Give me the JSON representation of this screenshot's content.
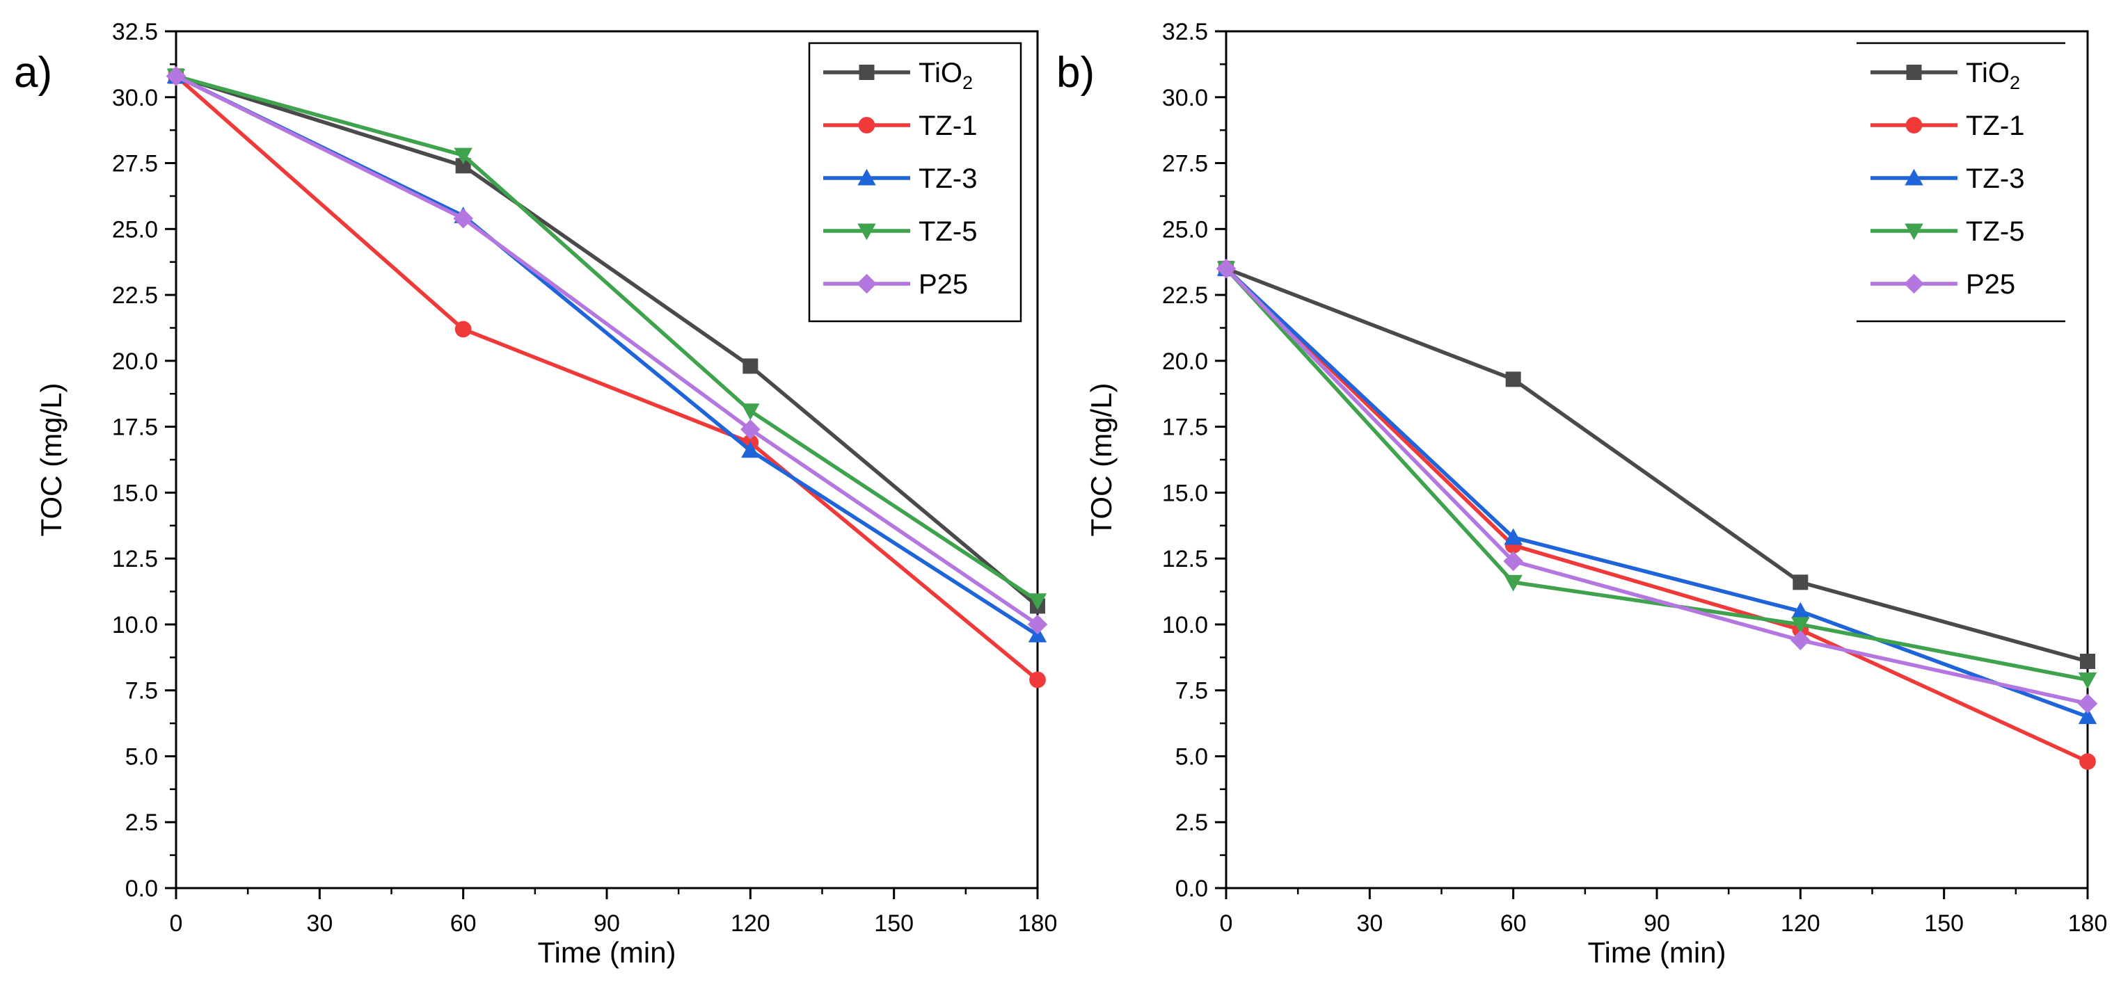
{
  "chart_data": [
    {
      "type": "line",
      "panel_label": "a)",
      "xlabel": "Time (min)",
      "ylabel": "TOC (mg/L)",
      "xlim": [
        0,
        180
      ],
      "ylim": [
        0,
        32.5
      ],
      "x_ticks": [
        0,
        30,
        60,
        90,
        120,
        150,
        180
      ],
      "y_ticks": [
        "0.0",
        "2.5",
        "5.0",
        "7.5",
        "10.0",
        "12.5",
        "15.0",
        "17.5",
        "20.0",
        "22.5",
        "25.0",
        "27.5",
        "30.0",
        "32.5"
      ],
      "grid": false,
      "legend_position": "top-right",
      "x": [
        0,
        60,
        120,
        180
      ],
      "series": [
        {
          "name": "TiO",
          "subscript": "2",
          "color": "#4a4a4a",
          "marker": "square",
          "values": [
            30.8,
            27.4,
            19.8,
            10.7
          ]
        },
        {
          "name": "TZ-1",
          "subscript": "",
          "color": "#f03a3a",
          "marker": "circle",
          "values": [
            30.8,
            21.2,
            16.9,
            7.9
          ]
        },
        {
          "name": "TZ-3",
          "subscript": "",
          "color": "#1f64d8",
          "marker": "triangle-up",
          "values": [
            30.8,
            25.5,
            16.6,
            9.6
          ]
        },
        {
          "name": "TZ-5",
          "subscript": "",
          "color": "#3fa34d",
          "marker": "triangle-down",
          "values": [
            30.8,
            27.8,
            18.1,
            10.9
          ]
        },
        {
          "name": "P25",
          "subscript": "",
          "color": "#b477e0",
          "marker": "diamond",
          "values": [
            30.8,
            25.4,
            17.4,
            10.0
          ]
        }
      ]
    },
    {
      "type": "line",
      "panel_label": "b)",
      "xlabel": "Time (min)",
      "ylabel": "TOC (mg/L)",
      "xlim": [
        0,
        180
      ],
      "ylim": [
        0,
        32.5
      ],
      "x_ticks": [
        0,
        30,
        60,
        90,
        120,
        150,
        180
      ],
      "y_ticks": [
        "0.0",
        "2.5",
        "5.0",
        "7.5",
        "10.0",
        "12.5",
        "15.0",
        "17.5",
        "20.0",
        "22.5",
        "25.0",
        "27.5",
        "30.0",
        "32.5"
      ],
      "grid": false,
      "legend_position": "top-right",
      "x": [
        0,
        60,
        120,
        180
      ],
      "series": [
        {
          "name": "TiO",
          "subscript": "2",
          "color": "#4a4a4a",
          "marker": "square",
          "values": [
            23.5,
            19.3,
            11.6,
            8.6
          ]
        },
        {
          "name": "TZ-1",
          "subscript": "",
          "color": "#f03a3a",
          "marker": "circle",
          "values": [
            23.5,
            13.0,
            9.8,
            4.8
          ]
        },
        {
          "name": "TZ-3",
          "subscript": "",
          "color": "#1f64d8",
          "marker": "triangle-up",
          "values": [
            23.5,
            13.3,
            10.5,
            6.5
          ]
        },
        {
          "name": "TZ-5",
          "subscript": "",
          "color": "#3fa34d",
          "marker": "triangle-down",
          "values": [
            23.5,
            11.6,
            10.0,
            7.9
          ]
        },
        {
          "name": "P25",
          "subscript": "",
          "color": "#b477e0",
          "marker": "diamond",
          "values": [
            23.5,
            12.4,
            9.4,
            7.0
          ]
        }
      ]
    }
  ]
}
